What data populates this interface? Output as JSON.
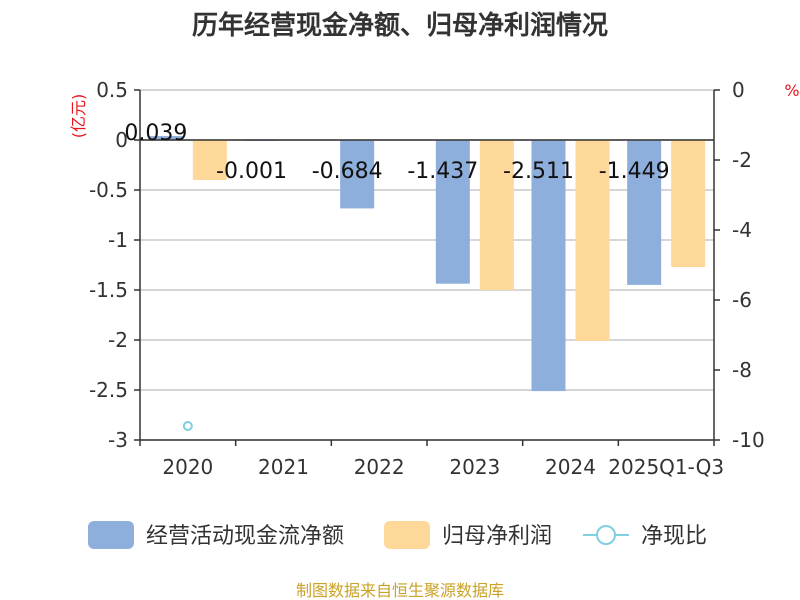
{
  "chart_data": {
    "type": "bar",
    "title": "历年经营现金净额、归母净利润情况",
    "categories": [
      "2020",
      "2021",
      "2022",
      "2023",
      "2024",
      "2025Q1-Q3"
    ],
    "series": [
      {
        "name": "经营活动现金流净额",
        "type": "bar",
        "axis": "left",
        "color": "#8eaedb",
        "values": [
          0.039,
          -0.001,
          -0.684,
          -1.437,
          -2.511,
          -1.449
        ],
        "labels": [
          "0.039",
          "-0.001",
          "-0.684",
          "-1.437",
          "-2.511",
          "-1.449"
        ]
      },
      {
        "name": "归母净利润",
        "type": "bar",
        "axis": "left",
        "color": "#fdd898",
        "values": [
          -0.4,
          null,
          null,
          -1.5,
          -2.01,
          -1.27
        ]
      },
      {
        "name": "净现比",
        "type": "scatter",
        "axis": "right",
        "color": "#7ecfdf",
        "values": [
          -9.6,
          null,
          null,
          null,
          null,
          null
        ]
      }
    ],
    "y_left": {
      "unit": "(亿元)",
      "ylim": [
        -3,
        0.5
      ],
      "ticks": [
        "0.5",
        "0",
        "-0.5",
        "-1",
        "-1.5",
        "-2",
        "-2.5",
        "-3"
      ]
    },
    "y_right": {
      "unit": "%",
      "ylim": [
        -10,
        0
      ],
      "ticks": [
        "0",
        "-2",
        "-4",
        "-6",
        "-8",
        "-10"
      ]
    },
    "grid": true,
    "legend_position": "bottom"
  },
  "source": "制图数据来自恒生聚源数据库"
}
